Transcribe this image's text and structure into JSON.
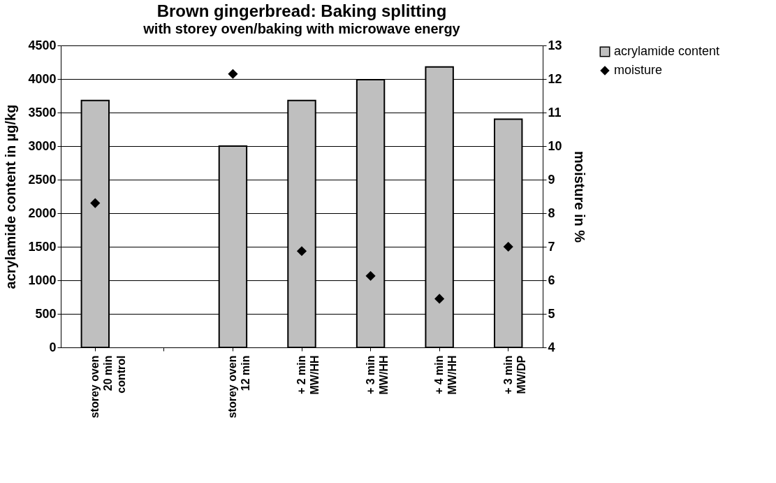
{
  "chart_data": {
    "type": "bar",
    "title": "Brown gingerbread: Baking splitting",
    "subtitle": "with storey oven/baking with microwave energy",
    "categories": [
      "storey oven 20 min control",
      null,
      "storey oven 12 min",
      "+ 2 min MW/HH",
      "+ 3 min MW/HH",
      "+ 4 min MW/HH",
      "+ 3 min MW/DP"
    ],
    "series": [
      {
        "name": "acrylamide content",
        "color": "#bfbfbf",
        "values": [
          3680,
          null,
          3000,
          3680,
          3990,
          4180,
          3400
        ]
      },
      {
        "name": "moisture",
        "type": "scatter",
        "axis": "y2",
        "color": "#000000",
        "marker": "diamond",
        "values": [
          8.3,
          null,
          12.15,
          6.87,
          6.13,
          5.45,
          7.0
        ]
      }
    ],
    "ylabel": "acrylamide content in µg/kg",
    "y2label": "moisture in %",
    "ylim": [
      0,
      4500
    ],
    "yticks": [
      0,
      500,
      1000,
      1500,
      2000,
      2500,
      3000,
      3500,
      4000,
      4500
    ],
    "y2lim": [
      4,
      13
    ],
    "y2ticks": [
      4,
      5,
      6,
      7,
      8,
      9,
      10,
      11,
      12,
      13
    ],
    "grid": "y",
    "legend": "right"
  }
}
